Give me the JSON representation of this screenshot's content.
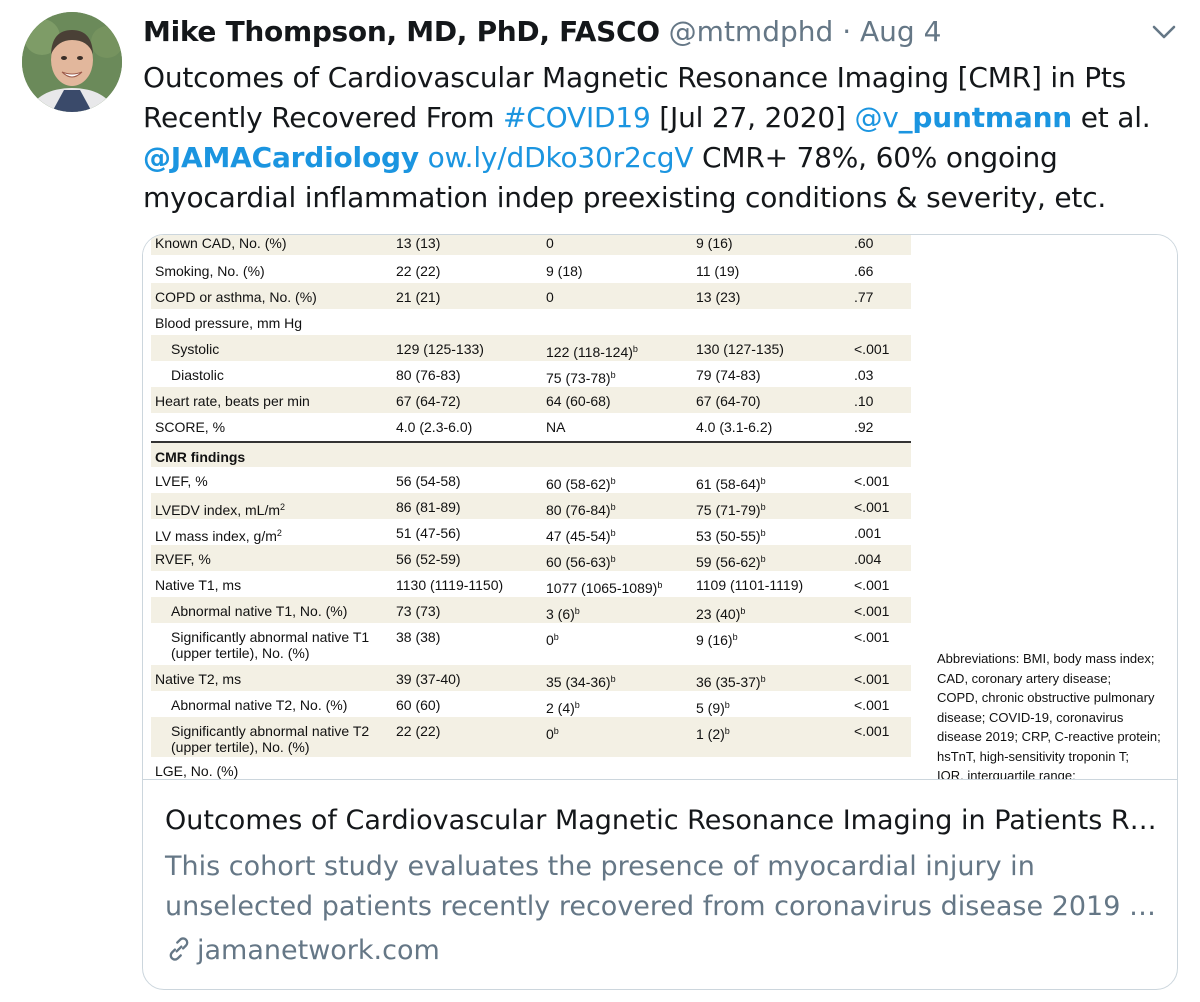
{
  "tweet": {
    "author_name": "Mike Thompson, MD, PhD, FASCO",
    "handle": "@mtmdphd",
    "separator": "·",
    "date": "Aug 4",
    "text": {
      "l1": "Outcomes of Cardiovascular Magnetic Resonance Imaging [CMR] in Pts",
      "l2_a": "Recently Recovered From ",
      "l2_hashtag": "#COVID19",
      "l2_b": " [Jul 27, 2020] ",
      "l2_mention_prefix": "@v",
      "l2_mention_rest": "_puntmann",
      "l2_c": " et al.",
      "l3_mention": "@JAMACardiology",
      "l3_space": " ",
      "l3_link": "ow.ly/dDko30r2cgV",
      "l3_rest": " CMR+ 78%, 60% ongoing",
      "l4": "myocardial inflammation indep preexisting conditions & severity, etc."
    }
  },
  "table": {
    "rows": [
      {
        "label": "Known CAD, No. (%)",
        "c1": "13 (13)",
        "c2": "0",
        "c3": "9 (16)",
        "p": ".60"
      },
      {
        "label": "Smoking, No. (%)",
        "c1": "22 (22)",
        "c2": "9 (18)",
        "c3": "11 (19)",
        "p": ".66"
      },
      {
        "label": "COPD or asthma, No. (%)",
        "c1": "21 (21)",
        "c2": "0",
        "c3": "13 (23)",
        "p": ".77"
      },
      {
        "label": "Blood pressure, mm Hg",
        "c1": "",
        "c2": "",
        "c3": "",
        "p": ""
      },
      {
        "label": "Systolic",
        "c1": "129 (125-133)",
        "c2": "122 (118-124)",
        "c3": "130 (127-135)",
        "p": "<.001"
      },
      {
        "label": "Diastolic",
        "c1": "80 (76-83)",
        "c2": "75 (73-78)",
        "c3": "79 (74-83)",
        "p": ".03"
      },
      {
        "label": "Heart rate, beats per min",
        "c1": "67 (64-72)",
        "c2": "64 (60-68)",
        "c3": "67 (64-70)",
        "p": ".10"
      },
      {
        "label": "SCORE, %",
        "c1": "4.0 (2.3-6.0)",
        "c2": "NA",
        "c3": "4.0 (3.1-6.2)",
        "p": ".92"
      },
      {
        "label": "CMR findings",
        "c1": "",
        "c2": "",
        "c3": "",
        "p": ""
      },
      {
        "label": "LVEF, %",
        "c1": "56 (54-58)",
        "c2": "60 (58-62)",
        "c3": "61 (58-64)",
        "p": "<.001"
      },
      {
        "label": "LVEDV index, mL/m",
        "c1": "86 (81-89)",
        "c2": "80 (76-84)",
        "c3": "75 (71-79)",
        "p": "<.001"
      },
      {
        "label": "LV mass index, g/m",
        "c1": "51 (47-56)",
        "c2": "47 (45-54)",
        "c3": "53 (50-55)",
        "p": ".001"
      },
      {
        "label": "RVEF, %",
        "c1": "56 (52-59)",
        "c2": "60 (56-63)",
        "c3": "59 (56-62)",
        "p": ".004"
      },
      {
        "label": "Native T1, ms",
        "c1": "1130 (1119-1150)",
        "c2": "1077 (1065-1089)",
        "c3": "1109 (1101-1119)",
        "p": "<.001"
      },
      {
        "label": "Abnormal native T1, No. (%)",
        "c1": "73 (73)",
        "c2": "3 (6)",
        "c3": "23 (40)",
        "p": "<.001"
      },
      {
        "label": "Significantly abnormal native T1",
        "label2": "(upper tertile), No. (%)",
        "c1": "38 (38)",
        "c2": "0",
        "c3": "9 (16)",
        "p": "<.001"
      },
      {
        "label": "Native T2, ms",
        "c1": "39 (37-40)",
        "c2": "35 (34-36)",
        "c3": "36 (35-37)",
        "p": "<.001"
      },
      {
        "label": "Abnormal native T2, No. (%)",
        "c1": "60 (60)",
        "c2": "2 (4)",
        "c3": "5 (9)",
        "p": "<.001"
      },
      {
        "label": "Significantly abnormal native T2",
        "label2": "(upper tertile), No. (%)",
        "c1": "22 (22)",
        "c2": "0",
        "c3": "1 (2)",
        "p": "<.001"
      },
      {
        "label": "LGE, No. (%)",
        "c1": "",
        "c2": "",
        "c3": "",
        "p": ""
      }
    ],
    "sup_b": "b",
    "sup_2": "2"
  },
  "abbreviations": {
    "l1": "Abbreviations: BMI, body mass index;",
    "l2": "CAD, coronary artery disease;",
    "l3": "COPD, chronic obstructive pulmonary",
    "l4": "disease; COVID-19, coronavirus",
    "l5": "disease 2019; CRP, C-reactive protein;",
    "l6": "hsTnT, high-sensitivity troponin T;",
    "l7": "IQR, interquartile range;"
  },
  "card": {
    "title": "Outcomes of Cardiovascular Magnetic Resonance Imaging in Patients R…",
    "desc_l1": "This cohort study evaluates the presence of myocardial injury in",
    "desc_l2": "unselected patients recently recovered from coronavirus disease 2019 …",
    "domain": "jamanetwork.com"
  },
  "icons": {
    "chevron": "chevron-down-icon",
    "link": "link-icon"
  },
  "colors": {
    "link_blue": "#1b95e0",
    "secondary_gray": "#657786",
    "table_shade": "#f3f0e4"
  }
}
